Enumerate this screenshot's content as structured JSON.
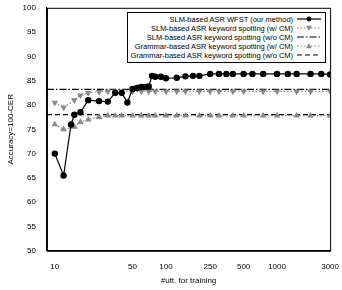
{
  "chart_data": {
    "type": "line",
    "x_label": "#utt. for training",
    "y_label": "Accuracy=100-CER",
    "log": "x",
    "grid": false,
    "legend": "upper right",
    "xlim": [
      8.5,
      3000
    ],
    "xticks": [
      10,
      50,
      100,
      250,
      500,
      1000,
      3000
    ],
    "ylim": [
      50,
      100
    ],
    "yticks": [
      50,
      55,
      60,
      65,
      70,
      75,
      80,
      85,
      90,
      95,
      100
    ],
    "series": [
      {
        "name": "SLM-based ASR WFST (our method)",
        "color": "#000000",
        "marker": "circle",
        "line_style": "solid",
        "x": [
          10,
          12,
          14,
          15,
          17,
          20,
          25,
          30,
          35,
          40,
          45,
          50,
          55,
          60,
          65,
          70,
          75,
          80,
          90,
          100,
          125,
          150,
          175,
          200,
          250,
          300,
          350,
          400,
          500,
          600,
          750,
          1000,
          1250,
          1500,
          2000,
          2500,
          3000
        ],
        "values": [
          70,
          65.5,
          76,
          78,
          78.5,
          81,
          80.8,
          80.7,
          82.5,
          82.5,
          80.5,
          83.3,
          83.5,
          83.7,
          83.7,
          83.8,
          86,
          85.8,
          85.8,
          85.5,
          85.6,
          85.9,
          86,
          86,
          86.4,
          86.4,
          86.4,
          86.4,
          86.4,
          86.4,
          86.4,
          86.4,
          86.4,
          86.4,
          86.4,
          86.4,
          86.3
        ]
      },
      {
        "name": "SLM-based ASR keyword spotting (w/  CM)",
        "color": "#888888",
        "marker": "triangle_down",
        "line_style": "dotted",
        "x": [
          10,
          12,
          15,
          17,
          20,
          25,
          30,
          35,
          40,
          50,
          60,
          70,
          80,
          100,
          125,
          150,
          200,
          250,
          300,
          400,
          500,
          750,
          1000,
          1500,
          2000,
          3000
        ],
        "values": [
          80.5,
          79.5,
          81,
          82,
          82.5,
          82.7,
          82.8,
          82.8,
          82.8,
          82.8,
          82.8,
          82.8,
          82.8,
          82.8,
          82.8,
          82.8,
          82.8,
          82.8,
          82.8,
          82.8,
          82.8,
          82.8,
          82.8,
          82.8,
          82.8,
          82.8
        ]
      },
      {
        "name": "SLM-based ASR keyword spotting (w/o CM)",
        "color": "#000000",
        "marker": "none",
        "line_style": "dashdot",
        "x": [
          8.5,
          3000
        ],
        "values": [
          83.2,
          83.2
        ]
      },
      {
        "name": "Grammar-based ASR keyword spotting (w/  CM)",
        "color": "#888888",
        "marker": "triangle",
        "line_style": "dotted",
        "x": [
          10,
          12,
          15,
          17,
          20,
          25,
          30,
          35,
          40,
          50,
          60,
          70,
          80,
          100,
          125,
          150,
          200,
          250,
          300,
          400,
          500,
          750,
          1000,
          1500,
          2000,
          3000
        ],
        "values": [
          76,
          75,
          75.5,
          76.5,
          77,
          77.5,
          77.8,
          77.8,
          77.8,
          77.8,
          77.8,
          77.8,
          77.8,
          77.8,
          77.8,
          77.8,
          77.8,
          77.8,
          77.8,
          77.8,
          77.8,
          77.8,
          77.8,
          77.8,
          77.8,
          77.8
        ]
      },
      {
        "name": "Grammar-based ASR keyword spotting (w/o CM)",
        "color": "#000000",
        "marker": "none",
        "line_style": "dashed",
        "x": [
          8.5,
          3000
        ],
        "values": [
          78,
          78
        ]
      }
    ]
  }
}
